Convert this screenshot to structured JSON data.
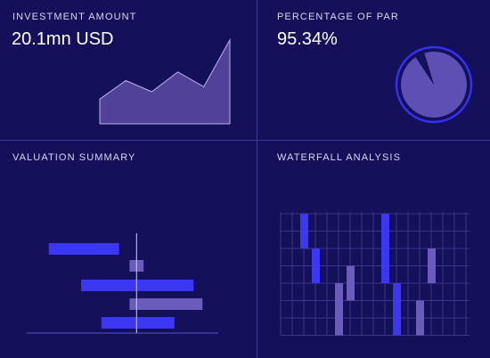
{
  "panels": {
    "investment": {
      "title": "INVESTMENT AMOUNT",
      "value": "20.1mn USD"
    },
    "par": {
      "title": "PERCENTAGE OF PAR",
      "value": "95.34%",
      "percent": 95.34
    },
    "valuation": {
      "title": "VALUATION SUMMARY"
    },
    "waterfall": {
      "title": "WATERFALL ANALYSIS"
    }
  },
  "chart_data": [
    {
      "type": "area",
      "title": "",
      "series": [
        {
          "values": [
            20,
            35,
            26,
            42,
            30,
            68
          ]
        }
      ],
      "ylim": [
        0,
        70
      ],
      "grid": false
    },
    {
      "type": "pie",
      "title": "",
      "slices": [
        {
          "value": 95.34
        },
        {
          "value": 4.66
        }
      ]
    },
    {
      "type": "bar",
      "orientation": "horizontal",
      "title": "",
      "bars": [
        {
          "start": -100,
          "end": -20,
          "color": "#3b37f2"
        },
        {
          "start": -8,
          "end": 8,
          "color": "#6a5bbd"
        },
        {
          "start": -63,
          "end": 65,
          "color": "#3b37f2"
        },
        {
          "start": -8,
          "end": 75,
          "color": "#6a5bbd"
        },
        {
          "start": -40,
          "end": 43,
          "color": "#3b37f2"
        }
      ],
      "xlim": [
        -125,
        93
      ],
      "grid": false
    },
    {
      "type": "bar",
      "title": "",
      "columns": 16,
      "rows": 7,
      "bars": [
        {
          "col": 2,
          "start": 0,
          "end": 2,
          "color": "#3b37f2"
        },
        {
          "col": 3,
          "start": 2,
          "end": 4,
          "color": "#3b37f2"
        },
        {
          "col": 5,
          "start": 4,
          "end": 7,
          "color": "#6a5bbd"
        },
        {
          "col": 6,
          "start": 3,
          "end": 5,
          "color": "#6a5bbd"
        },
        {
          "col": 9,
          "start": 0,
          "end": 4,
          "color": "#3b37f2"
        },
        {
          "col": 10,
          "start": 4,
          "end": 7,
          "color": "#3b37f2"
        },
        {
          "col": 12,
          "start": 5,
          "end": 7,
          "color": "#6a5bbd"
        },
        {
          "col": 13,
          "start": 2,
          "end": 4,
          "color": "#6a5bbd"
        }
      ],
      "grid": true
    }
  ]
}
